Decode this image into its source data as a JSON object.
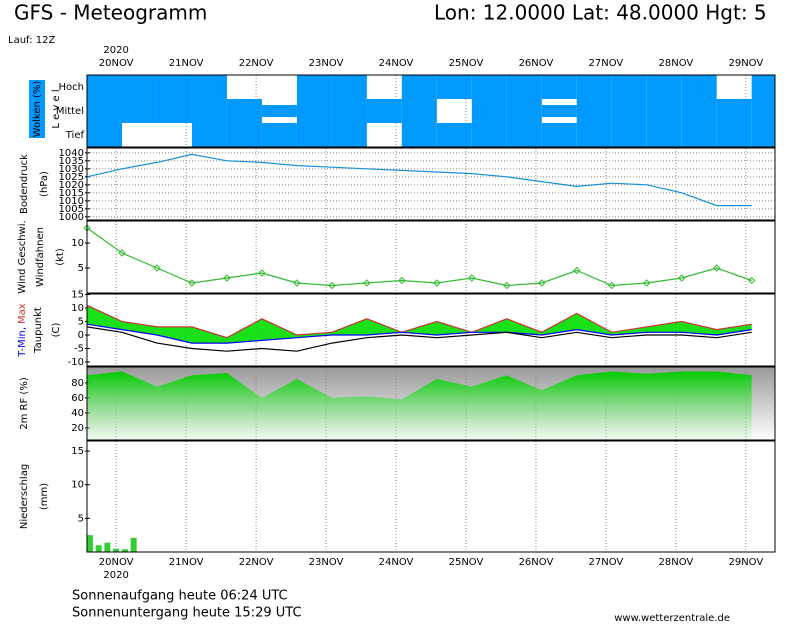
{
  "header": {
    "title": "GFS - Meteogramm",
    "location": "Lon: 12.0000  Lat: 48.0000  Hgt: 5",
    "run": "Lauf: 12Z"
  },
  "footer": {
    "sunrise": "Sonnenaufgang heute 06:24 UTC",
    "sunset": "Sonnenuntergang heute 15:29 UTC",
    "site": "www.wetterzentrale.de"
  },
  "chart_data": [
    {
      "type": "cloud",
      "ylabel": "Wolken (%)",
      "level_label": "L e v e l",
      "year": "2020",
      "xlim": [
        0,
        236
      ],
      "xticks": [
        {
          "value": 10,
          "label": "20NOV"
        },
        {
          "value": 34,
          "label": "21NOV"
        },
        {
          "value": 58,
          "label": "22NOV"
        },
        {
          "value": 82,
          "label": "23NOV"
        },
        {
          "value": 106,
          "label": "24NOV"
        },
        {
          "value": 130,
          "label": "25NOV"
        },
        {
          "value": 154,
          "label": "26NOV"
        },
        {
          "value": 178,
          "label": "27NOV"
        },
        {
          "value": 202,
          "label": "28NOV"
        },
        {
          "value": 226,
          "label": "29NOV"
        }
      ],
      "x": [
        0,
        12,
        24,
        36,
        48,
        60,
        72,
        84,
        96,
        108,
        120,
        132,
        144,
        156,
        168,
        180,
        192,
        204,
        216,
        228
      ],
      "series": [
        {
          "name": "Hoch",
          "color": "#0099ff",
          "values": [
            100,
            100,
            100,
            100,
            0,
            0,
            100,
            100,
            0,
            100,
            100,
            100,
            100,
            100,
            100,
            100,
            100,
            100,
            0,
            100
          ]
        },
        {
          "name": "Mittel",
          "color": "#0099ff",
          "values": [
            100,
            100,
            100,
            100,
            100,
            50,
            100,
            100,
            100,
            100,
            0,
            100,
            100,
            50,
            100,
            100,
            100,
            100,
            100,
            100
          ]
        },
        {
          "name": "Tief",
          "color": "#0099ff",
          "values": [
            100,
            0,
            0,
            100,
            100,
            100,
            100,
            100,
            0,
            100,
            100,
            100,
            100,
            100,
            100,
            100,
            100,
            100,
            100,
            100
          ]
        }
      ]
    },
    {
      "type": "line",
      "ylabel": "Bodendruck",
      "unit": "(hPa)",
      "grid": true,
      "xlim": [
        0,
        236
      ],
      "ylim": [
        998,
        1043
      ],
      "yticks": [
        1000,
        1005,
        1010,
        1015,
        1020,
        1025,
        1030,
        1035,
        1040
      ],
      "x": [
        0,
        12,
        24,
        36,
        48,
        60,
        72,
        84,
        96,
        108,
        120,
        132,
        144,
        156,
        168,
        180,
        192,
        204,
        216,
        228
      ],
      "color": "#1a8fd6",
      "values": [
        1025,
        1030,
        1034,
        1039,
        1035,
        1034,
        1032,
        1031,
        1030,
        1029,
        1028,
        1027,
        1025,
        1022,
        1019,
        1021,
        1020,
        1015,
        1007,
        1007
      ]
    },
    {
      "type": "wind",
      "ylabel": "Wind Geschwi.",
      "ylabel2": "Windfahnen",
      "unit": "(kt)",
      "grid": false,
      "xlim": [
        0,
        236
      ],
      "ylim": [
        0,
        14.4
      ],
      "yticks": [
        5,
        10
      ],
      "x": [
        0,
        12,
        24,
        36,
        48,
        60,
        72,
        84,
        96,
        108,
        120,
        132,
        144,
        156,
        168,
        180,
        192,
        204,
        216,
        228
      ],
      "color": "#33bb33",
      "values": [
        13,
        8,
        5,
        2,
        3,
        4,
        2,
        1.5,
        2,
        2.5,
        2,
        3,
        1.5,
        2,
        4.5,
        1.5,
        2,
        3,
        5,
        2.5
      ]
    },
    {
      "type": "temperature",
      "ylabel_min": "T-Min,",
      "ylabel_max": "Max",
      "ylabel2": "Taupunkt",
      "unit": "(C)",
      "grid": false,
      "xlim": [
        0,
        236
      ],
      "ylim": [
        -11.5,
        15.2
      ],
      "yticks": [
        -10,
        -5,
        0,
        5,
        10,
        15
      ],
      "x": [
        0,
        12,
        24,
        36,
        48,
        60,
        72,
        84,
        96,
        108,
        120,
        132,
        144,
        156,
        168,
        180,
        192,
        204,
        216,
        228
      ],
      "fill": "#00dd00",
      "series": [
        {
          "color": "#cc3333",
          "values": [
            11,
            5,
            3,
            3,
            -1,
            6,
            0,
            1,
            6,
            1,
            5,
            1,
            6,
            1,
            8,
            1,
            3,
            5,
            2,
            4
          ]
        },
        {
          "color": "#0000ff",
          "values": [
            4,
            2,
            0,
            -3,
            -3,
            -2,
            -1,
            0,
            0,
            1,
            0,
            1,
            1,
            0,
            2,
            0,
            1,
            1,
            0,
            2
          ]
        },
        {
          "color": "#000000",
          "values": [
            3,
            1,
            -3,
            -5,
            -6,
            -5,
            -6,
            -3,
            -1,
            0,
            -1,
            0,
            1,
            -1,
            1,
            -1,
            0,
            0,
            -1,
            1
          ]
        }
      ]
    },
    {
      "type": "area",
      "ylabel": "2m RF (%)",
      "grid": false,
      "xlim": [
        0,
        236
      ],
      "ylim": [
        4,
        101
      ],
      "yticks": [
        20,
        40,
        60,
        80
      ],
      "x": [
        0,
        12,
        24,
        36,
        48,
        60,
        72,
        84,
        96,
        108,
        120,
        132,
        144,
        156,
        168,
        180,
        192,
        204,
        216,
        228
      ],
      "color": "#00cc00",
      "values": [
        90,
        95,
        75,
        90,
        93,
        60,
        85,
        60,
        62,
        58,
        85,
        75,
        90,
        70,
        90,
        95,
        92,
        95,
        95,
        90
      ]
    },
    {
      "type": "bar",
      "ylabel": "Niederschlag",
      "unit": "(mm)",
      "year": "2020",
      "grid": false,
      "xlim": [
        0,
        236
      ],
      "ylim": [
        0,
        16.5
      ],
      "yticks": [
        5,
        10,
        15
      ],
      "xticks": [
        {
          "value": 10,
          "label": "20NOV"
        },
        {
          "value": 34,
          "label": "21NOV"
        },
        {
          "value": 58,
          "label": "22NOV"
        },
        {
          "value": 82,
          "label": "23NOV"
        },
        {
          "value": 106,
          "label": "24NOV"
        },
        {
          "value": 130,
          "label": "25NOV"
        },
        {
          "value": 154,
          "label": "26NOV"
        },
        {
          "value": 178,
          "label": "27NOV"
        },
        {
          "value": 202,
          "label": "28NOV"
        },
        {
          "value": 226,
          "label": "29NOV"
        }
      ],
      "x": [
        1,
        4,
        7,
        10,
        13,
        16
      ],
      "color": "#33cc33",
      "values": [
        2.5,
        1,
        1.4,
        0.5,
        0.4,
        2.1
      ]
    }
  ]
}
